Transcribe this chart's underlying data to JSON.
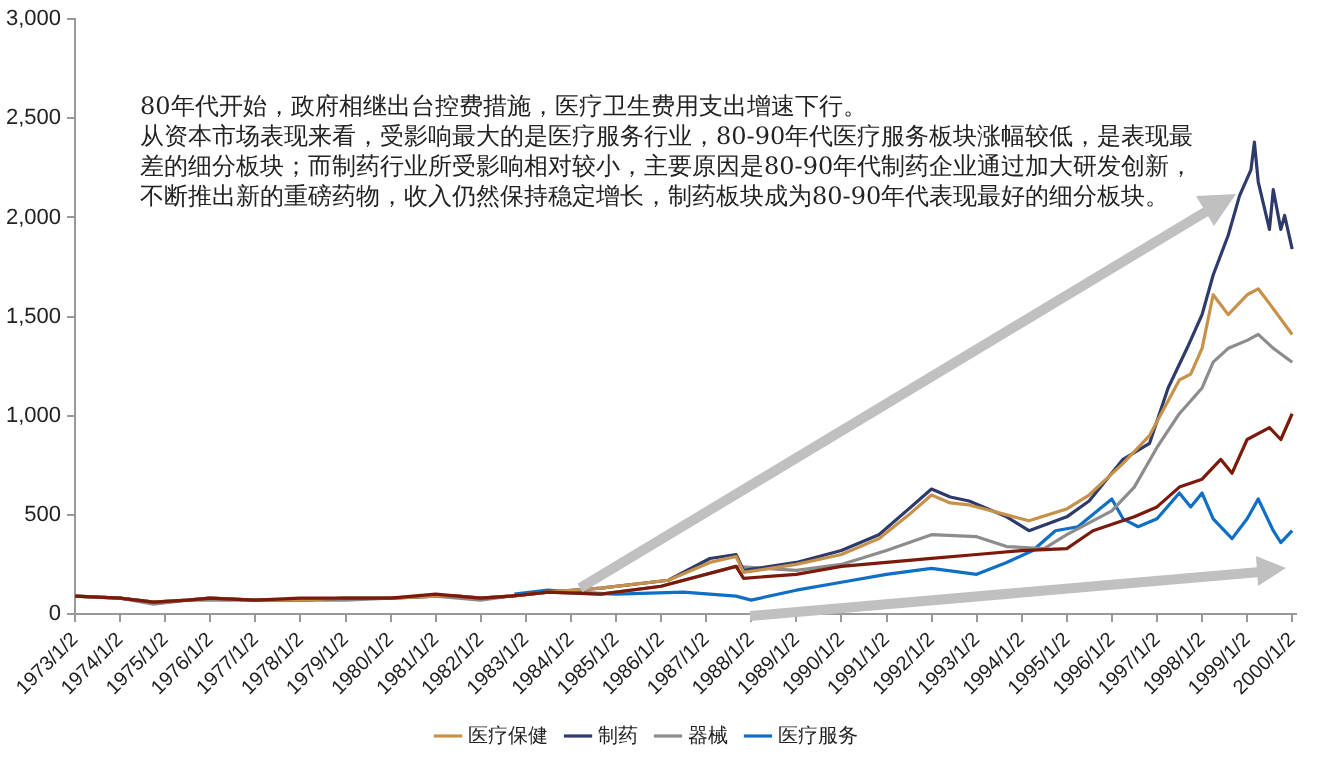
{
  "chart_data": {
    "type": "line",
    "xlim": [
      "1973-01-02",
      "2000-02-01"
    ],
    "xticks": [
      {
        "value": "1973-01-02",
        "label": "1973/1/2"
      },
      {
        "value": "1974-01-02",
        "label": "1974/1/2"
      },
      {
        "value": "1975-01-02",
        "label": "1975/1/2"
      },
      {
        "value": "1976-01-02",
        "label": "1976/1/2"
      },
      {
        "value": "1977-01-02",
        "label": "1977/1/2"
      },
      {
        "value": "1978-01-02",
        "label": "1978/1/2"
      },
      {
        "value": "1979-01-02",
        "label": "1979/1/2"
      },
      {
        "value": "1980-01-02",
        "label": "1980/1/2"
      },
      {
        "value": "1981-01-02",
        "label": "1981/1/2"
      },
      {
        "value": "1982-01-02",
        "label": "1982/1/2"
      },
      {
        "value": "1983-01-02",
        "label": "1983/1/2"
      },
      {
        "value": "1984-01-02",
        "label": "1984/1/2"
      },
      {
        "value": "1985-01-02",
        "label": "1985/1/2"
      },
      {
        "value": "1986-01-02",
        "label": "1986/1/2"
      },
      {
        "value": "1987-01-02",
        "label": "1987/1/2"
      },
      {
        "value": "1988-01-02",
        "label": "1988/1/2"
      },
      {
        "value": "1989-01-02",
        "label": "1989/1/2"
      },
      {
        "value": "1990-01-02",
        "label": "1990/1/2"
      },
      {
        "value": "1991-01-02",
        "label": "1991/1/2"
      },
      {
        "value": "1992-01-02",
        "label": "1992/1/2"
      },
      {
        "value": "1993-01-02",
        "label": "1993/1/2"
      },
      {
        "value": "1994-01-02",
        "label": "1994/1/2"
      },
      {
        "value": "1995-01-02",
        "label": "1995/1/2"
      },
      {
        "value": "1996-01-02",
        "label": "1996/1/2"
      },
      {
        "value": "1997-01-02",
        "label": "1997/1/2"
      },
      {
        "value": "1998-01-02",
        "label": "1998/1/2"
      },
      {
        "value": "1999-01-02",
        "label": "1999/1/2"
      },
      {
        "value": "2000-01-02",
        "label": "2000/1/2"
      }
    ],
    "ylim": [
      0,
      3000
    ],
    "yticks": [
      {
        "value": 0,
        "label": "0"
      },
      {
        "value": 500,
        "label": "500"
      },
      {
        "value": 1000,
        "label": "1,000"
      },
      {
        "value": 1500,
        "label": "1,500"
      },
      {
        "value": 2000,
        "label": "2,000"
      },
      {
        "value": 2500,
        "label": "2,500"
      },
      {
        "value": 3000,
        "label": "3,000"
      }
    ],
    "grid": false,
    "legend": "bottom",
    "annotations": [
      "80年代开始，政府相继出台控费措施，医疗卫生费用支出增速下行。",
      "从资本市场表现来看，受影响最大的是医疗服务行业，80-90年代医疗服务板块涨幅较低，是表现最差的细分板块；而制药行业所受影响相对较小，主要原因是80-90年代制药企业通过加大研发创新，不断推出新的重磅药物，收入仍然保持稳定增长，制药板块成为80-90年代表现最好的细分板块。"
    ],
    "series": [
      {
        "color": "#7b1a0a",
        "x": [
          "1973-01-02",
          "1974-01",
          "1974-10",
          "1975-07",
          "1976-01",
          "1977-01",
          "1978-01",
          "1979-01",
          "1980-01",
          "1981-01",
          "1981-07",
          "1982-01",
          "1982-09",
          "1983-07",
          "1984-09",
          "1986-01",
          "1987-09",
          "1987-11",
          "1989-01",
          "1990-01",
          "1991-01",
          "1992-01",
          "1993-01",
          "1994-01",
          "1995-01",
          "1995-08",
          "1996-07",
          "1997-01",
          "1997-07",
          "1998-01",
          "1998-06",
          "1998-09",
          "1999-01",
          "1999-07",
          "1999-10",
          "2000-01"
        ],
        "values": [
          90,
          80,
          60,
          70,
          80,
          70,
          80,
          80,
          80,
          100,
          90,
          80,
          90,
          110,
          100,
          140,
          240,
          180,
          200,
          240,
          260,
          280,
          300,
          320,
          330,
          420,
          490,
          540,
          640,
          680,
          780,
          710,
          880,
          940,
          880,
          1010
        ]
      },
      {
        "name": "医疗保健",
        "color": "#c8914a",
        "x": [
          "1973-01-02",
          "1974-01",
          "1974-10",
          "1975-07",
          "1976-01",
          "1977-01",
          "1978-01",
          "1979-01",
          "1980-01",
          "1981-01",
          "1981-07",
          "1982-01",
          "1982-09",
          "1983-07",
          "1984-09",
          "1986-03",
          "1987-02",
          "1987-09",
          "1987-11",
          "1989-01",
          "1990-01",
          "1990-11",
          "1991-07",
          "1992-01",
          "1992-06",
          "1992-11",
          "1993-09",
          "1994-03",
          "1995-01",
          "1995-07",
          "1996-04",
          "1996-11",
          "1997-07",
          "1997-10",
          "1998-01",
          "1998-04",
          "1998-08",
          "1999-01",
          "1999-04",
          "1999-08",
          "2000-01"
        ],
        "values": [
          90,
          80,
          60,
          70,
          80,
          70,
          70,
          80,
          80,
          90,
          90,
          80,
          90,
          110,
          130,
          170,
          260,
          290,
          210,
          250,
          300,
          380,
          500,
          600,
          560,
          550,
          500,
          470,
          530,
          600,
          760,
          900,
          1180,
          1210,
          1340,
          1610,
          1510,
          1610,
          1640,
          1540,
          1410
        ]
      },
      {
        "name": "制药",
        "color": "#2e3a6b",
        "x": [
          "1973-01-02",
          "1974-01",
          "1974-10",
          "1975-07",
          "1976-01",
          "1977-01",
          "1978-01",
          "1979-01",
          "1980-01",
          "1981-01",
          "1981-07",
          "1982-01",
          "1982-09",
          "1983-07",
          "1984-09",
          "1986-03",
          "1987-02",
          "1987-09",
          "1987-11",
          "1989-01",
          "1990-01",
          "1990-11",
          "1991-07",
          "1992-01",
          "1992-06",
          "1992-11",
          "1993-09",
          "1994-03",
          "1995-01",
          "1995-07",
          "1996-04",
          "1996-11",
          "1997-04",
          "1997-09",
          "1998-01",
          "1998-04",
          "1998-08",
          "1998-11",
          "1999-02",
          "1999-03",
          "1999-04",
          "1999-07",
          "1999-08",
          "1999-10",
          "1999-11",
          "2000-01"
        ],
        "values": [
          90,
          80,
          60,
          70,
          80,
          70,
          70,
          80,
          80,
          90,
          90,
          80,
          90,
          110,
          130,
          170,
          280,
          300,
          220,
          260,
          320,
          400,
          530,
          630,
          590,
          570,
          490,
          420,
          490,
          570,
          780,
          860,
          1140,
          1340,
          1510,
          1710,
          1910,
          2110,
          2240,
          2380,
          2180,
          1940,
          2140,
          1940,
          2010,
          1840
        ]
      },
      {
        "name": "器械",
        "color": "#8c8c8c",
        "x": [
          "1973-01-02",
          "1974-01",
          "1974-10",
          "1975-07",
          "1976-01",
          "1977-01",
          "1978-01",
          "1979-01",
          "1980-01",
          "1981-01",
          "1981-07",
          "1982-01",
          "1982-09",
          "1983-07",
          "1984-09",
          "1986-01",
          "1987-09",
          "1989-01",
          "1990-01",
          "1991-01",
          "1992-01",
          "1993-01",
          "1993-09",
          "1994-07",
          "1995-01",
          "1996-01",
          "1996-07",
          "1997-01",
          "1997-07",
          "1998-01",
          "1998-04",
          "1998-08",
          "1999-01",
          "1999-04",
          "1999-08",
          "2000-01"
        ],
        "values": [
          90,
          80,
          50,
          70,
          70,
          70,
          70,
          70,
          80,
          90,
          80,
          70,
          90,
          110,
          100,
          140,
          240,
          220,
          250,
          320,
          400,
          390,
          340,
          330,
          400,
          520,
          640,
          840,
          1010,
          1140,
          1270,
          1340,
          1380,
          1410,
          1340,
          1270
        ]
      },
      {
        "name": "医疗服务",
        "color": "#0f6fc6",
        "x": [
          "1982-10",
          "1983-07",
          "1984-01",
          "1985-01",
          "1986-07",
          "1987-09",
          "1988-01",
          "1989-01",
          "1990-01",
          "1991-01",
          "1992-01",
          "1993-01",
          "1993-09",
          "1994-04",
          "1994-10",
          "1995-04",
          "1996-01",
          "1996-04",
          "1996-08",
          "1997-01",
          "1997-07",
          "1997-10",
          "1998-01",
          "1998-04",
          "1998-09",
          "1999-01",
          "1999-04",
          "1999-08",
          "1999-10",
          "2000-01"
        ],
        "values": [
          100,
          120,
          110,
          100,
          110,
          90,
          70,
          120,
          160,
          200,
          230,
          200,
          260,
          320,
          420,
          440,
          580,
          480,
          440,
          480,
          610,
          540,
          610,
          480,
          380,
          480,
          580,
          420,
          360,
          420
        ]
      }
    ]
  }
}
